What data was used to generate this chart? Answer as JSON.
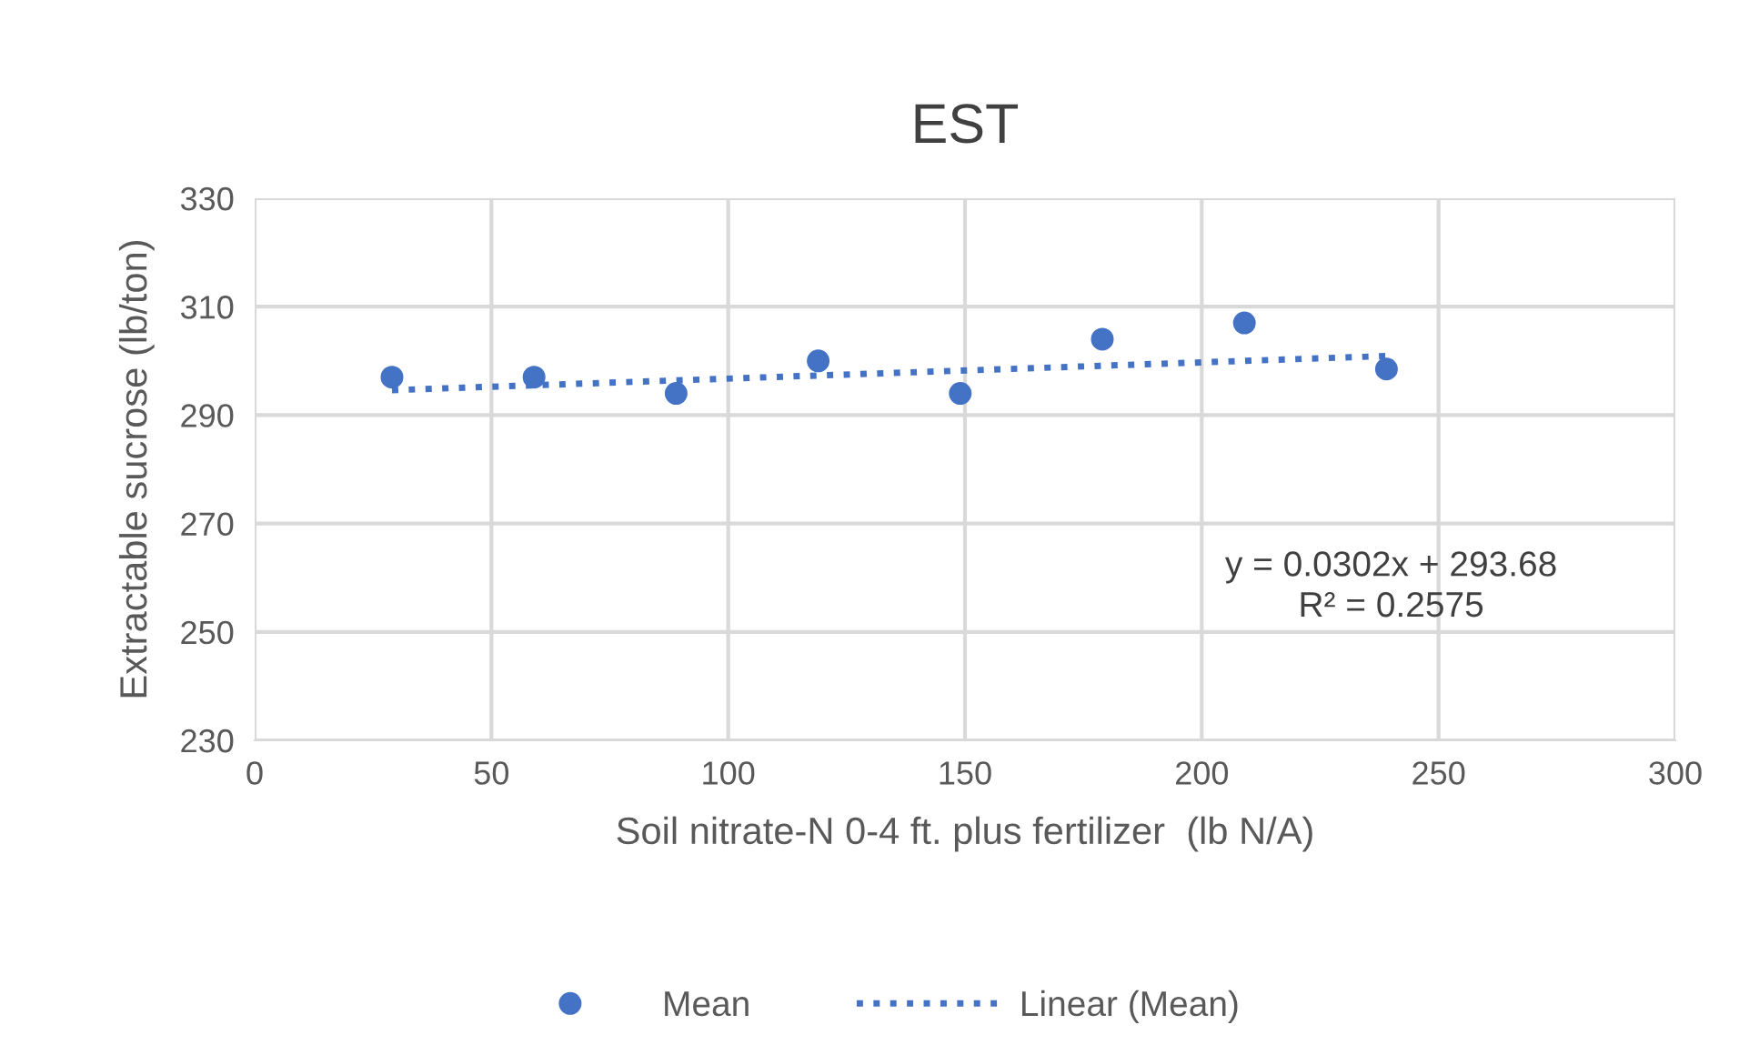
{
  "chart_data": {
    "type": "scatter",
    "title": "EST",
    "xlabel": "Soil nitrate-N 0-4 ft. plus fertilizer  (lb N/A)",
    "ylabel": "Extractable sucrose (lb/ton)",
    "series": [
      {
        "name": "Mean",
        "type": "scatter",
        "color": "#4472c4",
        "marker": "circle",
        "x": [
          29,
          59,
          89,
          119,
          149,
          179,
          209,
          239
        ],
        "values": [
          297,
          297,
          294,
          300,
          294,
          304,
          307,
          298.5
        ]
      },
      {
        "name": "Linear (Mean)",
        "type": "line",
        "color": "#4472c4",
        "line_style": "dotted",
        "marker": "none",
        "x": [
          29,
          239
        ],
        "values": [
          294.6,
          300.9
        ]
      }
    ],
    "xlim": [
      0,
      300
    ],
    "xticks": [
      0,
      50,
      100,
      150,
      200,
      250,
      300
    ],
    "ylim": [
      230,
      330
    ],
    "yticks": [
      230,
      250,
      270,
      290,
      310,
      330
    ],
    "grid": true,
    "legend": "bottom",
    "annotations": [
      "y = 0.0302x + 293.68",
      "R² = 0.2575"
    ]
  }
}
